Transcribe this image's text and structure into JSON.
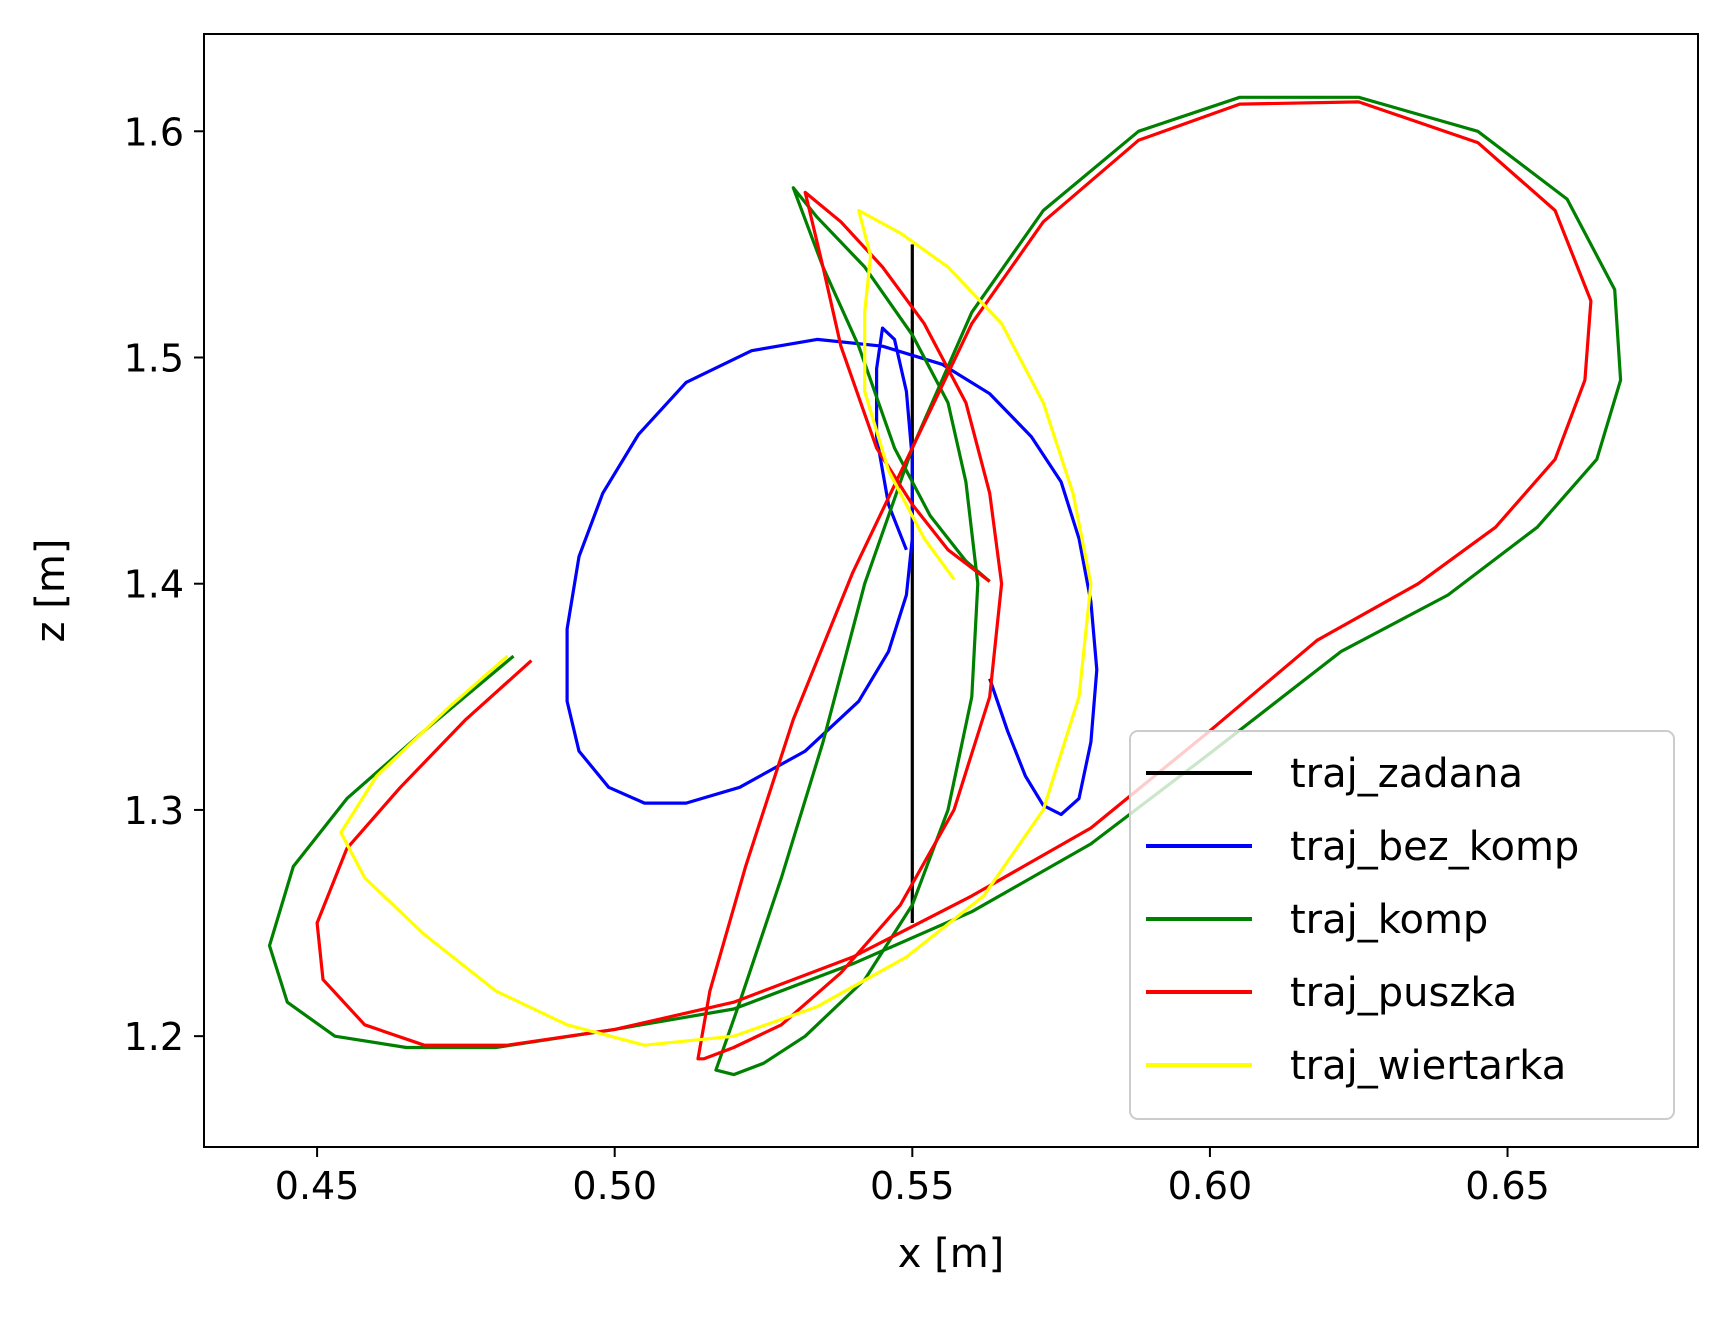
{
  "chart_data": {
    "type": "line",
    "title": "",
    "xlabel": "x [m]",
    "ylabel": "z [m]",
    "xlim": [
      0.431,
      0.682
    ],
    "ylim": [
      1.151,
      1.643
    ],
    "grid": false,
    "legend_position": "lower-right",
    "x_ticks": [
      0.45,
      0.5,
      0.55,
      0.6,
      0.65
    ],
    "x_tick_labels": [
      "0.45",
      "0.50",
      "0.55",
      "0.60",
      "0.65"
    ],
    "y_ticks": [
      1.2,
      1.3,
      1.4,
      1.5,
      1.6
    ],
    "y_tick_labels": [
      "1.2",
      "1.3",
      "1.4",
      "1.5",
      "1.6"
    ],
    "series": [
      {
        "name": "traj_zadana",
        "color": "#000000",
        "points": [
          [
            0.55,
            1.55
          ],
          [
            0.55,
            1.25
          ]
        ]
      },
      {
        "name": "traj_bez_komp",
        "color": "#0000ff",
        "points": [
          [
            0.549,
            1.415
          ],
          [
            0.546,
            1.435
          ],
          [
            0.544,
            1.465
          ],
          [
            0.544,
            1.495
          ],
          [
            0.545,
            1.513
          ],
          [
            0.547,
            1.508
          ],
          [
            0.549,
            1.485
          ],
          [
            0.55,
            1.455
          ],
          [
            0.55,
            1.42
          ],
          [
            0.549,
            1.395
          ],
          [
            0.546,
            1.37
          ],
          [
            0.541,
            1.348
          ],
          [
            0.532,
            1.326
          ],
          [
            0.521,
            1.31
          ],
          [
            0.512,
            1.303
          ],
          [
            0.505,
            1.303
          ],
          [
            0.499,
            1.31
          ],
          [
            0.494,
            1.326
          ],
          [
            0.492,
            1.348
          ],
          [
            0.492,
            1.38
          ],
          [
            0.494,
            1.412
          ],
          [
            0.498,
            1.44
          ],
          [
            0.504,
            1.466
          ],
          [
            0.512,
            1.489
          ],
          [
            0.523,
            1.503
          ],
          [
            0.534,
            1.508
          ],
          [
            0.545,
            1.505
          ],
          [
            0.555,
            1.497
          ],
          [
            0.563,
            1.484
          ],
          [
            0.57,
            1.465
          ],
          [
            0.575,
            1.445
          ],
          [
            0.578,
            1.42
          ],
          [
            0.58,
            1.392
          ],
          [
            0.581,
            1.362
          ],
          [
            0.58,
            1.33
          ],
          [
            0.578,
            1.305
          ],
          [
            0.575,
            1.298
          ],
          [
            0.572,
            1.302
          ],
          [
            0.569,
            1.315
          ],
          [
            0.566,
            1.335
          ],
          [
            0.563,
            1.358
          ]
        ]
      },
      {
        "name": "traj_komp",
        "color": "#008000",
        "points": [
          [
            0.563,
            1.401
          ],
          [
            0.559,
            1.41
          ],
          [
            0.553,
            1.43
          ],
          [
            0.547,
            1.46
          ],
          [
            0.541,
            1.505
          ],
          [
            0.535,
            1.54
          ],
          [
            0.53,
            1.575
          ],
          [
            0.534,
            1.562
          ],
          [
            0.542,
            1.54
          ],
          [
            0.55,
            1.51
          ],
          [
            0.556,
            1.48
          ],
          [
            0.559,
            1.445
          ],
          [
            0.561,
            1.4
          ],
          [
            0.56,
            1.35
          ],
          [
            0.556,
            1.3
          ],
          [
            0.55,
            1.258
          ],
          [
            0.542,
            1.225
          ],
          [
            0.532,
            1.2
          ],
          [
            0.525,
            1.188
          ],
          [
            0.52,
            1.183
          ],
          [
            0.517,
            1.185
          ],
          [
            0.521,
            1.215
          ],
          [
            0.528,
            1.27
          ],
          [
            0.535,
            1.33
          ],
          [
            0.542,
            1.4
          ],
          [
            0.55,
            1.46
          ],
          [
            0.56,
            1.52
          ],
          [
            0.572,
            1.565
          ],
          [
            0.588,
            1.6
          ],
          [
            0.605,
            1.615
          ],
          [
            0.625,
            1.615
          ],
          [
            0.645,
            1.6
          ],
          [
            0.66,
            1.57
          ],
          [
            0.668,
            1.53
          ],
          [
            0.669,
            1.49
          ],
          [
            0.665,
            1.455
          ],
          [
            0.655,
            1.425
          ],
          [
            0.64,
            1.395
          ],
          [
            0.622,
            1.37
          ],
          [
            0.6,
            1.325
          ],
          [
            0.58,
            1.285
          ],
          [
            0.56,
            1.255
          ],
          [
            0.54,
            1.232
          ],
          [
            0.52,
            1.212
          ],
          [
            0.5,
            1.203
          ],
          [
            0.48,
            1.195
          ],
          [
            0.465,
            1.195
          ],
          [
            0.453,
            1.2
          ],
          [
            0.445,
            1.215
          ],
          [
            0.442,
            1.24
          ],
          [
            0.446,
            1.275
          ],
          [
            0.455,
            1.305
          ],
          [
            0.468,
            1.335
          ],
          [
            0.483,
            1.368
          ]
        ]
      },
      {
        "name": "traj_puszka",
        "color": "#ff0000",
        "points": [
          [
            0.563,
            1.401
          ],
          [
            0.556,
            1.415
          ],
          [
            0.55,
            1.435
          ],
          [
            0.544,
            1.46
          ],
          [
            0.538,
            1.505
          ],
          [
            0.535,
            1.54
          ],
          [
            0.532,
            1.573
          ],
          [
            0.538,
            1.56
          ],
          [
            0.545,
            1.54
          ],
          [
            0.552,
            1.515
          ],
          [
            0.559,
            1.48
          ],
          [
            0.563,
            1.44
          ],
          [
            0.565,
            1.4
          ],
          [
            0.563,
            1.35
          ],
          [
            0.557,
            1.3
          ],
          [
            0.548,
            1.258
          ],
          [
            0.538,
            1.228
          ],
          [
            0.528,
            1.205
          ],
          [
            0.52,
            1.195
          ],
          [
            0.515,
            1.19
          ],
          [
            0.514,
            1.19
          ],
          [
            0.516,
            1.22
          ],
          [
            0.522,
            1.275
          ],
          [
            0.53,
            1.34
          ],
          [
            0.54,
            1.405
          ],
          [
            0.55,
            1.46
          ],
          [
            0.56,
            1.515
          ],
          [
            0.572,
            1.56
          ],
          [
            0.588,
            1.596
          ],
          [
            0.605,
            1.612
          ],
          [
            0.625,
            1.613
          ],
          [
            0.645,
            1.595
          ],
          [
            0.658,
            1.565
          ],
          [
            0.664,
            1.525
          ],
          [
            0.663,
            1.49
          ],
          [
            0.658,
            1.455
          ],
          [
            0.648,
            1.425
          ],
          [
            0.635,
            1.4
          ],
          [
            0.618,
            1.375
          ],
          [
            0.6,
            1.335
          ],
          [
            0.58,
            1.292
          ],
          [
            0.56,
            1.262
          ],
          [
            0.54,
            1.235
          ],
          [
            0.52,
            1.215
          ],
          [
            0.5,
            1.203
          ],
          [
            0.482,
            1.196
          ],
          [
            0.468,
            1.196
          ],
          [
            0.458,
            1.205
          ],
          [
            0.451,
            1.225
          ],
          [
            0.45,
            1.25
          ],
          [
            0.455,
            1.283
          ],
          [
            0.464,
            1.31
          ],
          [
            0.475,
            1.34
          ],
          [
            0.486,
            1.366
          ]
        ]
      },
      {
        "name": "traj_wiertarka",
        "color": "#ffff00",
        "points": [
          [
            0.557,
            1.402
          ],
          [
            0.552,
            1.42
          ],
          [
            0.546,
            1.45
          ],
          [
            0.542,
            1.485
          ],
          [
            0.542,
            1.52
          ],
          [
            0.543,
            1.545
          ],
          [
            0.541,
            1.565
          ],
          [
            0.548,
            1.555
          ],
          [
            0.556,
            1.54
          ],
          [
            0.565,
            1.515
          ],
          [
            0.572,
            1.48
          ],
          [
            0.577,
            1.44
          ],
          [
            0.58,
            1.4
          ],
          [
            0.578,
            1.35
          ],
          [
            0.572,
            1.3
          ],
          [
            0.562,
            1.262
          ],
          [
            0.549,
            1.235
          ],
          [
            0.534,
            1.213
          ],
          [
            0.52,
            1.2
          ],
          [
            0.505,
            1.196
          ],
          [
            0.492,
            1.205
          ],
          [
            0.48,
            1.22
          ],
          [
            0.468,
            1.245
          ],
          [
            0.458,
            1.27
          ],
          [
            0.454,
            1.29
          ],
          [
            0.46,
            1.315
          ],
          [
            0.472,
            1.345
          ],
          [
            0.482,
            1.368
          ]
        ]
      }
    ]
  }
}
